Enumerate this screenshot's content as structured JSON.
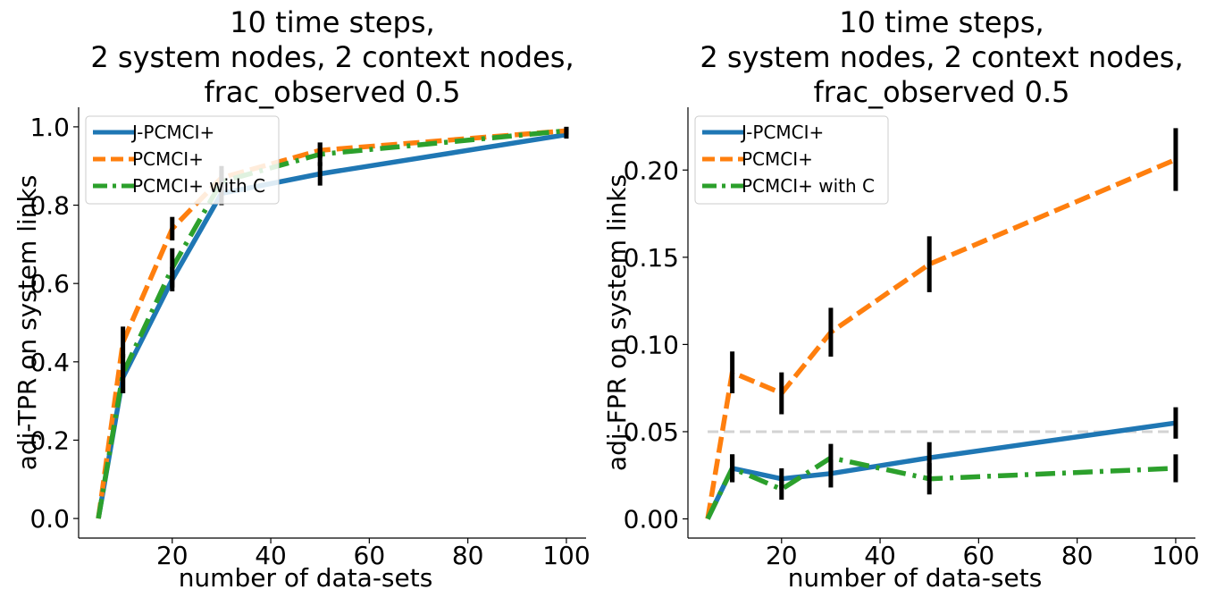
{
  "chart_data": [
    {
      "type": "line",
      "title": [
        "10 time steps,",
        "2 system nodes, 2 context nodes,",
        "frac_observed 0.5"
      ],
      "xlabel": "number of data-sets",
      "ylabel": "adj-TPR on system links",
      "xlim": [
        1,
        104
      ],
      "ylim": [
        -0.05,
        1.05
      ],
      "xticks": [
        20,
        40,
        60,
        80,
        100
      ],
      "yticks": [
        0.0,
        0.2,
        0.4,
        0.6,
        0.8,
        1.0
      ],
      "ytick_labels": [
        "0.0",
        "0.2",
        "0.4",
        "0.6",
        "0.8",
        "1.0"
      ],
      "legend_position": "upper-left",
      "x": [
        5,
        10,
        20,
        30,
        50,
        100
      ],
      "series": [
        {
          "name": "J-PCMCI+",
          "color": "#1f77b4",
          "linestyle": "solid",
          "values": [
            0.0,
            0.36,
            0.61,
            0.83,
            0.88,
            0.98
          ],
          "errors": [
            0.0,
            0.04,
            0.03,
            0.03,
            0.03,
            0.01
          ]
        },
        {
          "name": "PCMCI+",
          "color": "#ff7f0e",
          "linestyle": "dashed",
          "values": [
            0.0,
            0.45,
            0.74,
            0.87,
            0.94,
            0.99
          ],
          "errors": [
            0.0,
            0.04,
            0.03,
            0.03,
            0.02,
            0.01
          ]
        },
        {
          "name": "PCMCI+ with C",
          "color": "#2ca02c",
          "linestyle": "dashdot",
          "values": [
            0.0,
            0.37,
            0.64,
            0.86,
            0.93,
            0.99
          ],
          "errors": [
            0.0,
            0.05,
            0.05,
            0.03,
            0.03,
            0.01
          ]
        }
      ],
      "hline": null
    },
    {
      "type": "line",
      "title": [
        "10 time steps,",
        "2 system nodes, 2 context nodes,",
        "frac_observed 0.5"
      ],
      "xlabel": "number of data-sets",
      "ylabel": "adj-FPR on system links",
      "xlim": [
        1,
        104
      ],
      "ylim": [
        -0.011,
        0.236
      ],
      "xticks": [
        20,
        40,
        60,
        80,
        100
      ],
      "yticks": [
        0.0,
        0.05,
        0.1,
        0.15,
        0.2
      ],
      "ytick_labels": [
        "0.00",
        "0.05",
        "0.10",
        "0.15",
        "0.20"
      ],
      "legend_position": "upper-left",
      "x": [
        5,
        10,
        20,
        30,
        50,
        100
      ],
      "series": [
        {
          "name": "J-PCMCI+",
          "color": "#1f77b4",
          "linestyle": "solid",
          "values": [
            0.0,
            0.029,
            0.023,
            0.026,
            0.035,
            0.055
          ],
          "errors": [
            0.0,
            0.008,
            0.006,
            0.008,
            0.009,
            0.009
          ]
        },
        {
          "name": "PCMCI+",
          "color": "#ff7f0e",
          "linestyle": "dashed",
          "values": [
            0.0,
            0.084,
            0.072,
            0.107,
            0.146,
            0.206
          ],
          "errors": [
            0.0,
            0.012,
            0.012,
            0.014,
            0.016,
            0.018
          ]
        },
        {
          "name": "PCMCI+ with C",
          "color": "#2ca02c",
          "linestyle": "dashdot",
          "values": [
            0.0,
            0.029,
            0.017,
            0.035,
            0.023,
            0.029
          ],
          "errors": [
            0.0,
            0.008,
            0.006,
            0.008,
            0.009,
            0.008
          ]
        }
      ],
      "hline": {
        "y": 0.05,
        "color": "#d3d3d3",
        "linestyle": "dashed"
      }
    }
  ]
}
